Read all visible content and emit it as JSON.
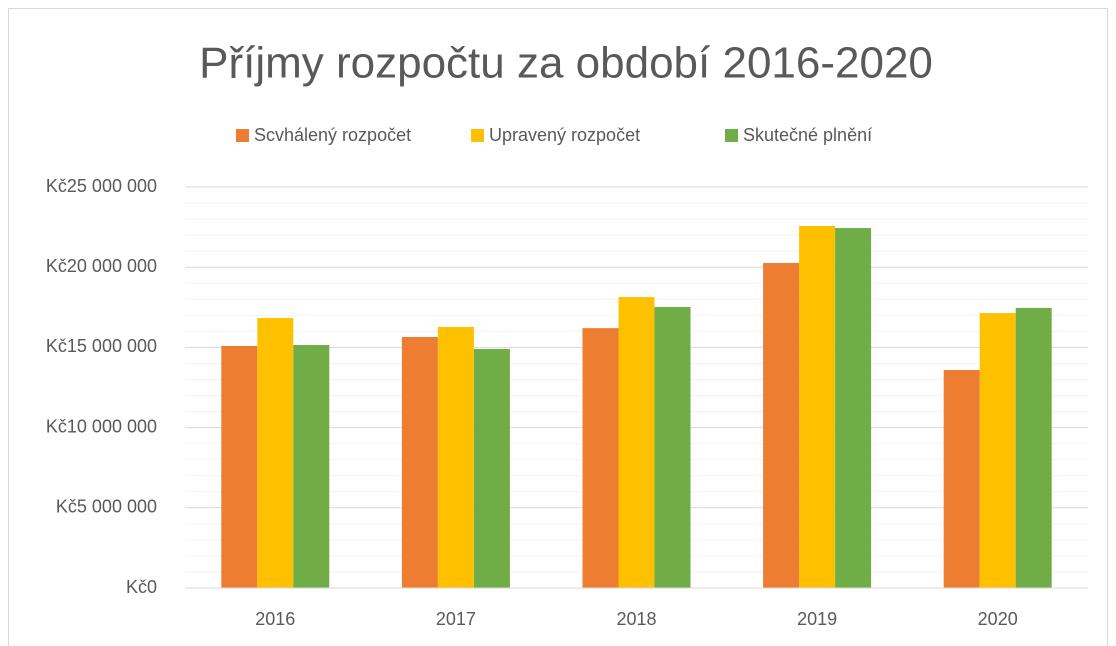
{
  "chart_data": {
    "type": "bar",
    "title": "Příjmy rozpočtu za období 2016-2020",
    "categories": [
      "2016",
      "2017",
      "2018",
      "2019",
      "2020"
    ],
    "series": [
      {
        "name": "Scvhálený rozpočet",
        "color": "#ed7d31",
        "values": [
          15090000,
          15650000,
          16200000,
          20260000,
          13590000
        ]
      },
      {
        "name": "Upravený rozpočet",
        "color": "#ffc000",
        "values": [
          16830000,
          16270000,
          18140000,
          22570000,
          17140000
        ]
      },
      {
        "name": "Skutečné plnění",
        "color": "#70ad47",
        "values": [
          15150000,
          14900000,
          17520000,
          22440000,
          17460000
        ]
      }
    ],
    "ylim": [
      0,
      25000000
    ],
    "yticks": [
      {
        "value": 0,
        "label": "Kč0"
      },
      {
        "value": 5000000,
        "label": "Kč5 000 000"
      },
      {
        "value": 10000000,
        "label": "Kč10 000 000"
      },
      {
        "value": 15000000,
        "label": "Kč15 000 000"
      },
      {
        "value": 20000000,
        "label": "Kč20 000 000"
      },
      {
        "value": 25000000,
        "label": "Kč25 000 000"
      }
    ],
    "grid": true,
    "minor_grid": true,
    "legend": "top"
  }
}
